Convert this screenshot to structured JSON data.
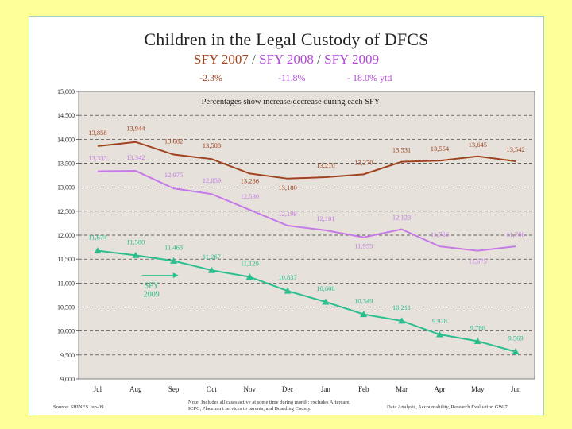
{
  "slide": {
    "title": "Children in the Legal Custody of DFCS",
    "subtitle_parts": [
      "SFY 2007",
      " / ",
      "SFY 2008",
      " / ",
      "SFY 2009"
    ],
    "pct_changes": [
      "-2.3%",
      "-11.8%",
      "- 18.0% ytd"
    ],
    "pct_colors": [
      "#a0421e",
      "#b04ad6",
      "#b04ad6"
    ],
    "footer": {
      "source": "Source: SHINES    Jun-09",
      "notes_line1": "Note: Includes all cases active at some time during month; excludes Aftercare,",
      "notes_line2": "ICPC, Placement services to parents, and Boarding County.",
      "credit": "Data Analysis, Accountability, Research Evaluation  GW-7"
    }
  },
  "colors": {
    "plot_bg": "#e6e1db",
    "sfy2007": "#a0421e",
    "sfy2008": "#c57ae8",
    "sfy2009": "#2bbf8f",
    "sfy2009_label": "#2bbf8f",
    "sfy2008_label": "#c57ae8",
    "sfy2007_label": "#a0421e"
  },
  "chart_data": {
    "type": "line",
    "title": "Children in the Legal Custody of DFCS",
    "annotation": "Percentages show increase/decrease during each SFY",
    "arrow_label": [
      "SFY",
      "2009"
    ],
    "categories": [
      "Jul",
      "Aug",
      "Sep",
      "Oct",
      "Nov",
      "Dec",
      "Jan",
      "Feb",
      "Mar",
      "Apr",
      "May",
      "Jun"
    ],
    "ylim": [
      9000,
      15000
    ],
    "yticks": [
      9000,
      9500,
      10000,
      10500,
      11000,
      11500,
      12000,
      12500,
      13000,
      13500,
      14000,
      14500,
      15000
    ],
    "ytick_labels": [
      "9,000",
      "9,500",
      "10,000",
      "10,500",
      "11,000",
      "11,500",
      "12,000",
      "12,500",
      "13,000",
      "13,500",
      "14,000",
      "14,500",
      "15,000"
    ],
    "series": [
      {
        "name": "SFY 2007",
        "values": [
          13858,
          13944,
          13682,
          13588,
          13286,
          13180,
          13210,
          13270,
          13531,
          13554,
          13645,
          13542
        ],
        "labels": [
          "13,858",
          "13,944",
          "13,682",
          "13,588",
          "13,286",
          "13,180",
          "13,210",
          "13,270",
          "13,531",
          "13,554",
          "13,645",
          "13,542"
        ],
        "marker": "none"
      },
      {
        "name": "SFY 2008",
        "values": [
          13333,
          13342,
          12975,
          12859,
          12530,
          12199,
          12101,
          11955,
          12123,
          11766,
          11675,
          11766
        ],
        "labels": [
          "13,333",
          "13,342",
          "12,975",
          "12,859",
          "12,530",
          "12,199",
          "12,101",
          "11,955",
          "12,123",
          "11,766",
          "11,675",
          "11,766"
        ],
        "marker": "none"
      },
      {
        "name": "SFY 2009",
        "values": [
          11674,
          11580,
          11463,
          11267,
          11129,
          10837,
          10608,
          10349,
          10211,
          9928,
          9788,
          9569
        ],
        "labels": [
          "11,674",
          "11,580",
          "11,463",
          "11,267",
          "11,129",
          "10,837",
          "10,608",
          "10,349",
          "10,211",
          "9,928",
          "9,788",
          "9,569"
        ],
        "marker": "triangle"
      }
    ]
  }
}
